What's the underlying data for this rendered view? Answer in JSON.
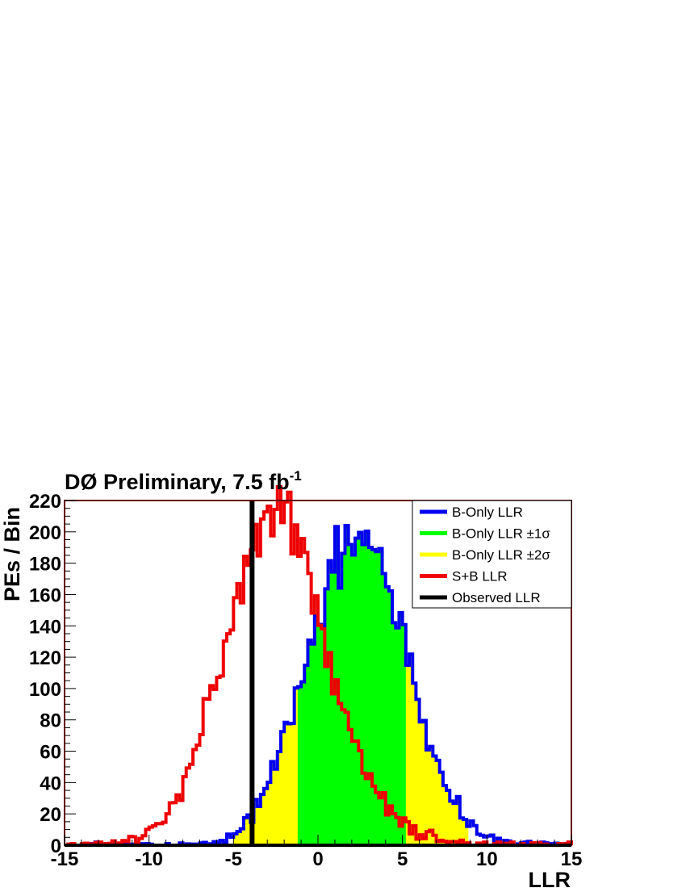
{
  "chart_data": {
    "type": "histogram",
    "title_main": "DØ Preliminary, 7.5 fb",
    "title_sup": "-1",
    "xlabel": "LLR",
    "ylabel": "PEs / Bin",
    "xlim": [
      -15,
      15
    ],
    "ylim": [
      0,
      220
    ],
    "xticks": [
      -15,
      -10,
      -5,
      0,
      5,
      10,
      15
    ],
    "yticks": [
      0,
      20,
      40,
      60,
      80,
      100,
      120,
      140,
      160,
      180,
      200,
      220
    ],
    "legend_position": "top-right",
    "grid": false,
    "bin_width": 0.2,
    "observed_llr": -3.9,
    "bands": {
      "two_sigma": [
        -5.0,
        8.9
      ],
      "one_sigma": [
        -1.2,
        5.2
      ]
    },
    "colors": {
      "b_only": "#0000ee",
      "one_sigma": "#00ff00",
      "two_sigma": "#ffff00",
      "s_plus_b": "#ee0000",
      "observed": "#000000",
      "frame": "#660000"
    },
    "series": [
      {
        "name": "B-Only LLR",
        "gauss_components": [
          {
            "mean": 2.3,
            "sigma": 2.9,
            "peak": 200
          }
        ]
      },
      {
        "name": "S+B LLR",
        "gauss_components": [
          {
            "mean": -2.6,
            "sigma": 2.9,
            "peak": 210
          },
          {
            "mean": 3.0,
            "sigma": 2.6,
            "peak": 10
          }
        ]
      }
    ],
    "legend": [
      {
        "key": "b_only",
        "text": "B-Only LLR"
      },
      {
        "key": "one_sigma",
        "text": "B-Only LLR ±1σ"
      },
      {
        "key": "two_sigma",
        "text": "B-Only LLR ±2σ"
      },
      {
        "key": "s_plus_b",
        "text": "S+B LLR"
      },
      {
        "key": "observed",
        "text": "Observed LLR"
      }
    ]
  }
}
